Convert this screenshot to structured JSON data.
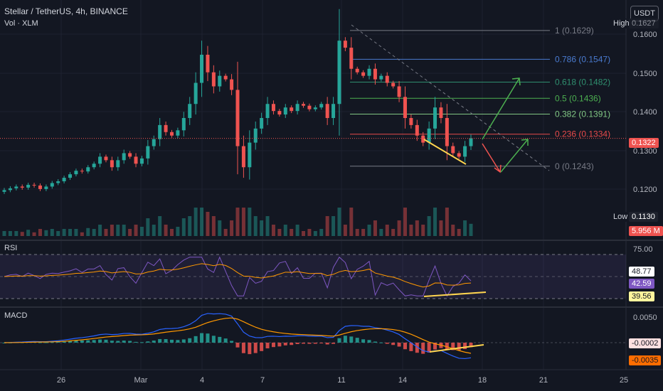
{
  "header": {
    "symbol_line": "Stellar / TetherUS, 4h, BINANCE",
    "volume_line": "Vol · XLM",
    "currency_button": "USDT"
  },
  "price_axis": {
    "ticks": [
      "0.1600",
      "0.1500",
      "0.1400",
      "0.1300",
      "0.1200"
    ],
    "high_label": "High",
    "high_value": "0.1627",
    "low_label": "Low",
    "low_value": "0.1130",
    "last_price": "0.1322",
    "volume_value": "5.956 M"
  },
  "fib_levels": [
    {
      "label": "1 (0.1629)",
      "value": 0.1629,
      "color": "#787b86"
    },
    {
      "label": "0.786 (0.1547)",
      "value": 0.1547,
      "color": "#4a7bd0"
    },
    {
      "label": "0.618 (0.1482)",
      "value": 0.1482,
      "color": "#2f8f6f"
    },
    {
      "label": "0.5 (0.1436)",
      "value": 0.1436,
      "color": "#4caf50"
    },
    {
      "label": "0.382 (0.1391)",
      "value": 0.1391,
      "color": "#81c784"
    },
    {
      "label": "0.236 (0.1334)",
      "value": 0.1334,
      "color": "#e84a4a"
    },
    {
      "label": "0 (0.1243)",
      "value": 0.1243,
      "color": "#787b86"
    }
  ],
  "rsi": {
    "title": "RSI",
    "ticks": [
      "75.00"
    ],
    "values": [
      "48.77",
      "42.59",
      "39.56"
    ]
  },
  "macd": {
    "title": "MACD",
    "ticks": [
      "0.0050"
    ],
    "values": [
      "-0.0002",
      "-0.0035"
    ]
  },
  "time_axis": [
    "26",
    "Mar",
    "4",
    "7",
    "11",
    "14",
    "18",
    "21",
    "25"
  ],
  "colors": {
    "up": "#26a69a",
    "down": "#ef5350",
    "background": "#131722",
    "rsi_line": "#7e57c2",
    "signal": "#ff9800",
    "macd_line": "#2962ff",
    "trendline": "#ffd54f"
  },
  "chart_data": {
    "type": "candlestick",
    "price_range": [
      0.1105,
      0.1655
    ],
    "highlights": {
      "high": 0.1627,
      "low": 0.113,
      "last": 0.1322
    },
    "candles_close_approx": [
      0.1175,
      0.118,
      0.1185,
      0.1182,
      0.119,
      0.1188,
      0.1178,
      0.1185,
      0.1195,
      0.12,
      0.121,
      0.122,
      0.123,
      0.1228,
      0.124,
      0.125,
      0.127,
      0.126,
      0.124,
      0.126,
      0.128,
      0.127,
      0.125,
      0.1265,
      0.13,
      0.132,
      0.136,
      0.134,
      0.133,
      0.1345,
      0.138,
      0.142,
      0.148,
      0.156,
      0.151,
      0.147,
      0.15,
      0.149,
      0.146,
      0.13,
      0.124,
      0.131,
      0.135,
      0.138,
      0.142,
      0.14,
      0.139,
      0.141,
      0.14,
      0.142,
      0.1415,
      0.1405,
      0.141,
      0.142,
      0.138,
      0.142,
      0.16,
      0.158,
      0.152,
      0.151,
      0.15,
      0.152,
      0.149,
      0.15,
      0.148,
      0.147,
      0.144,
      0.138,
      0.136,
      0.133,
      0.131,
      0.135,
      0.141,
      0.138,
      0.13,
      0.128,
      0.127,
      0.13,
      0.1322
    ]
  }
}
